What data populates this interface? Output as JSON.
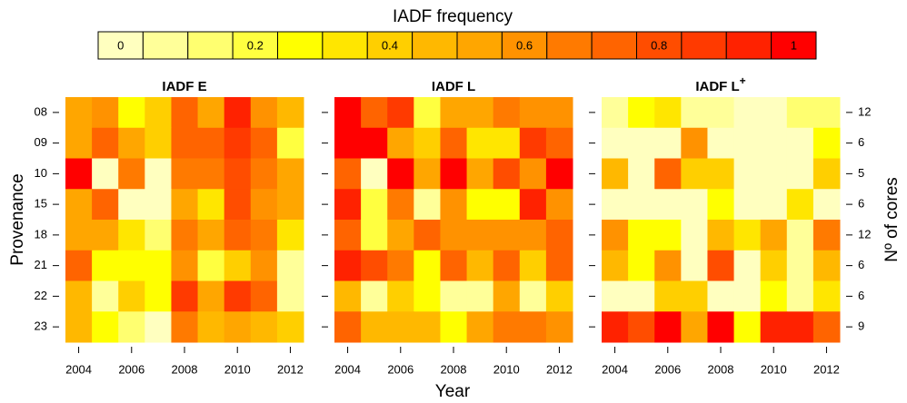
{
  "chart_data": {
    "type": "heatmap",
    "title": "IADF frequency",
    "colorbar": {
      "lim": [
        0,
        1
      ],
      "colors": [
        "#ffffbf",
        "#ffff99",
        "#ffff70",
        "#ffff40",
        "#ffff00",
        "#ffe600",
        "#ffcf00",
        "#ffb800",
        "#ffa600",
        "#ff9200",
        "#ff7a00",
        "#ff6400",
        "#ff4d00",
        "#ff3a00",
        "#ff2200",
        "#ff0000"
      ],
      "ticks": [
        0,
        0.2,
        0.4,
        0.6,
        0.8,
        1
      ]
    },
    "x_label": "Year",
    "y_label": "Provenance",
    "y2_label": "Nº of cores",
    "x": [
      2004,
      2005,
      2006,
      2007,
      2008,
      2009,
      2010,
      2011,
      2012
    ],
    "xticks": [
      2004,
      2006,
      2008,
      2010,
      2012
    ],
    "categories": [
      "08",
      "09",
      "10",
      "15",
      "18",
      "21",
      "22",
      "23"
    ],
    "y2_categories": [
      12,
      6,
      5,
      6,
      12,
      6,
      6,
      9
    ],
    "panels": [
      {
        "title": "IADF E",
        "values": [
          [
            0.53,
            0.6,
            0.27,
            0.4,
            0.73,
            0.53,
            0.93,
            0.6,
            0.47
          ],
          [
            0.53,
            0.73,
            0.53,
            0.4,
            0.73,
            0.73,
            0.87,
            0.73,
            0.2
          ],
          [
            1,
            0,
            0.67,
            0,
            0.67,
            0.67,
            0.8,
            0.67,
            0.53
          ],
          [
            0.53,
            0.73,
            0,
            0,
            0.53,
            0.33,
            0.8,
            0.6,
            0.53
          ],
          [
            0.53,
            0.53,
            0.33,
            0.13,
            0.67,
            0.53,
            0.73,
            0.67,
            0.33
          ],
          [
            0.73,
            0.27,
            0.27,
            0.27,
            0.6,
            0.2,
            0.4,
            0.6,
            0.07
          ],
          [
            0.47,
            0.07,
            0.4,
            0.27,
            0.87,
            0.53,
            0.87,
            0.73,
            0.07
          ],
          [
            0.47,
            0.27,
            0.13,
            0,
            0.67,
            0.47,
            0.53,
            0.47,
            0.4
          ]
        ]
      },
      {
        "title": "IADF L",
        "values": [
          [
            1,
            0.73,
            0.87,
            0.2,
            0.53,
            0.53,
            0.67,
            0.6,
            0.6
          ],
          [
            1,
            1,
            0.53,
            0.4,
            0.73,
            0.33,
            0.33,
            0.87,
            0.73
          ],
          [
            0.73,
            0,
            1,
            0.53,
            1,
            0.53,
            0.8,
            0.6,
            1
          ],
          [
            0.93,
            0.2,
            0.67,
            0.07,
            0.6,
            0.27,
            0.27,
            0.93,
            0.6
          ],
          [
            0.73,
            0.2,
            0.53,
            0.73,
            0.6,
            0.6,
            0.6,
            0.6,
            0.73
          ],
          [
            0.93,
            0.8,
            0.67,
            0.27,
            0.73,
            0.47,
            0.73,
            0.4,
            0.73
          ],
          [
            0.47,
            0.07,
            0.4,
            0.27,
            0.07,
            0.07,
            0.53,
            0.07,
            0.4
          ],
          [
            0.73,
            0.47,
            0.47,
            0.47,
            0.27,
            0.53,
            0.67,
            0.67,
            0.6
          ]
        ]
      },
      {
        "title": "IADF L",
        "title_sup": "+",
        "values": [
          [
            0.07,
            0.27,
            0.33,
            0.07,
            0.07,
            0,
            0,
            0.13,
            0.13
          ],
          [
            0,
            0,
            0,
            0.6,
            0,
            0,
            0,
            0,
            0.27
          ],
          [
            0.47,
            0,
            0.73,
            0.4,
            0.4,
            0,
            0,
            0,
            0.4
          ],
          [
            0,
            0,
            0,
            0,
            0.27,
            0,
            0,
            0.33,
            0
          ],
          [
            0.6,
            0.27,
            0.27,
            0,
            0.47,
            0.33,
            0.53,
            0.07,
            0.67
          ],
          [
            0.47,
            0.27,
            0.6,
            0,
            0.8,
            0,
            0.4,
            0.07,
            0.47
          ],
          [
            0,
            0,
            0.4,
            0.4,
            0,
            0,
            0.27,
            0.07,
            0.33
          ],
          [
            0.93,
            0.8,
            1,
            0.53,
            1,
            0.27,
            0.93,
            0.93,
            0.73
          ]
        ]
      }
    ]
  }
}
